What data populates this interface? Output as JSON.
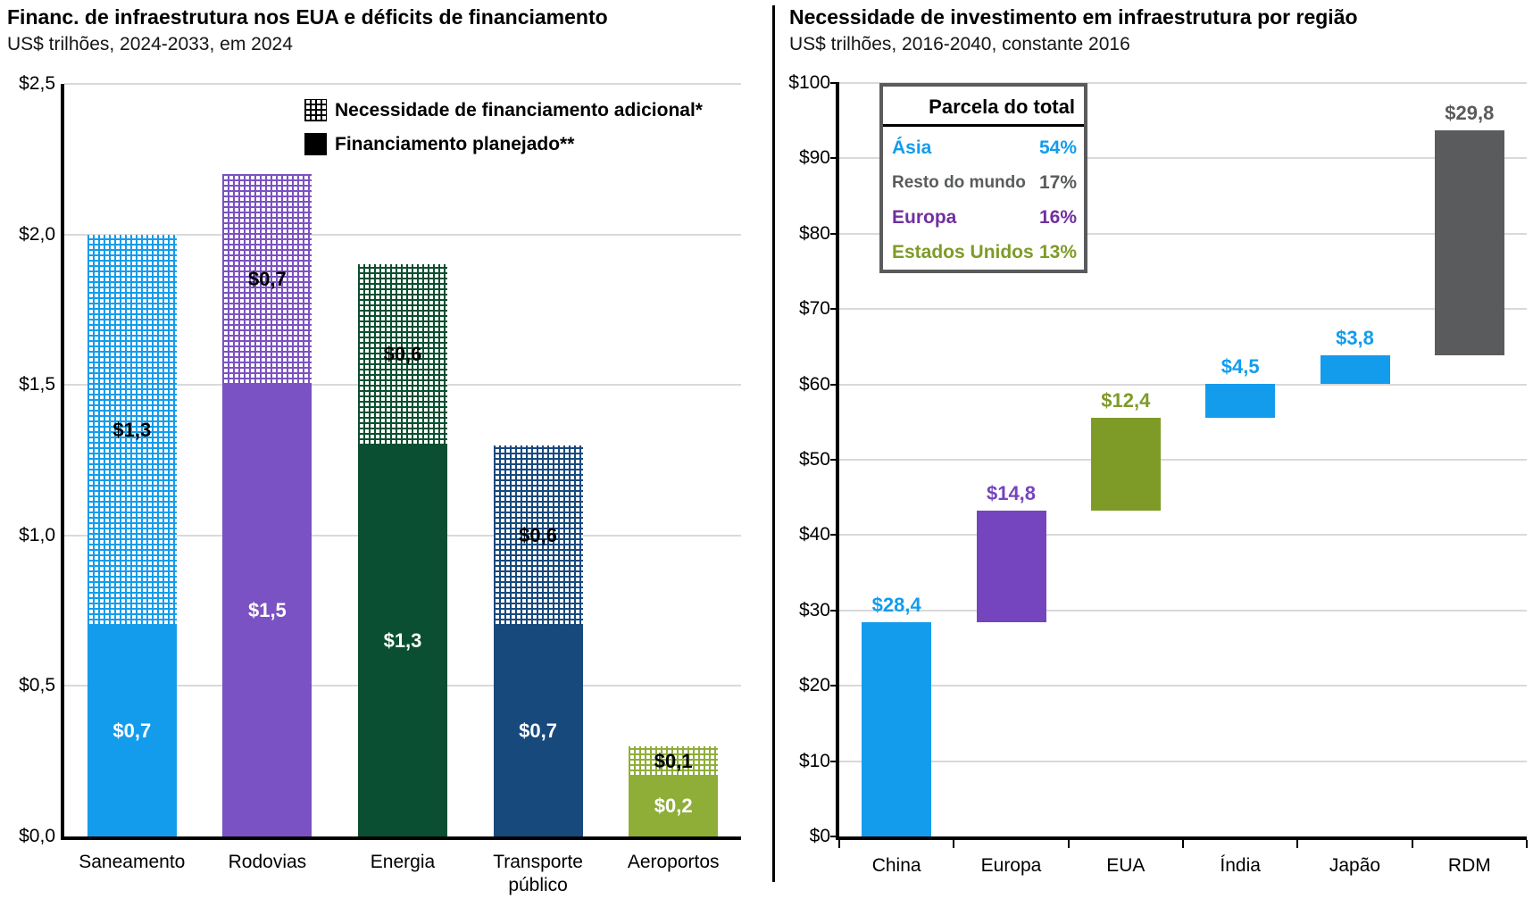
{
  "chart_data": [
    {
      "type": "bar",
      "stacked": true,
      "title": "Financ. de infraestrutura nos EUA e déficits de financiamento",
      "subtitle": "US$ trilhões, 2024-2033, em 2024",
      "categories": [
        "Saneamento",
        "Rodovias",
        "Energia",
        "Transporte público",
        "Aeroportos"
      ],
      "series": [
        {
          "name": "Financiamento planejado**",
          "style": "solid",
          "values": [
            0.7,
            1.5,
            1.3,
            0.7,
            0.2
          ],
          "data_labels": [
            "$0,7",
            "$1,5",
            "$1,3",
            "$0,7",
            "$0,2"
          ]
        },
        {
          "name": "Necessidade de financiamento adicional*",
          "style": "pattern",
          "values": [
            1.3,
            0.7,
            0.6,
            0.6,
            0.1
          ],
          "data_labels": [
            "$1,3",
            "$0,7",
            "$0,6",
            "$0,6",
            "$0,1"
          ]
        }
      ],
      "category_colors": [
        "#149CEC",
        "#7A52C3",
        "#0A4F31",
        "#17497D",
        "#8FAE38"
      ],
      "ylim": [
        0,
        2.5
      ],
      "y_ticks": [
        {
          "label": "$0,0",
          "value": 0
        },
        {
          "label": "$0,5",
          "value": 0.5
        },
        {
          "label": "$1,0",
          "value": 1.0
        },
        {
          "label": "$1,5",
          "value": 1.5
        },
        {
          "label": "$2,0",
          "value": 2.0
        },
        {
          "label": "$2,5",
          "value": 2.5
        }
      ],
      "grid": true,
      "legend_position": "top-inside"
    },
    {
      "type": "waterfall",
      "title": "Necessidade de investimento em infraestrutura por região",
      "subtitle": "US$ trilhões, 2016-2040, constante 2016",
      "categories": [
        "China",
        "Europa",
        "EUA",
        "Índia",
        "Japão",
        "RDM"
      ],
      "values": [
        28.4,
        14.8,
        12.4,
        4.5,
        3.8,
        29.8
      ],
      "data_labels": [
        "$28,4",
        "$14,8",
        "$12,4",
        "$4,5",
        "$3,8",
        "$29,8"
      ],
      "bar_colors": [
        "#149CEC",
        "#7445BE",
        "#7E9B27",
        "#149CEC",
        "#149CEC",
        "#595B5D"
      ],
      "ylim": [
        0,
        100
      ],
      "y_ticks": [
        {
          "label": "$0",
          "value": 0
        },
        {
          "label": "$10",
          "value": 10
        },
        {
          "label": "$20",
          "value": 20
        },
        {
          "label": "$30",
          "value": 30
        },
        {
          "label": "$40",
          "value": 40
        },
        {
          "label": "$50",
          "value": 50
        },
        {
          "label": "$60",
          "value": 60
        },
        {
          "label": "$70",
          "value": 70
        },
        {
          "label": "$80",
          "value": 80
        },
        {
          "label": "$90",
          "value": 90
        },
        {
          "label": "$100",
          "value": 100
        }
      ],
      "grid": true,
      "legend_table": {
        "header": "Parcela do total",
        "rows": [
          {
            "region": "Ásia",
            "share": "54%",
            "color": "#149CEC"
          },
          {
            "region": "Resto do mundo",
            "share": "17%",
            "color": "#595B5D"
          },
          {
            "region": "Europa",
            "share": "16%",
            "color": "#7030A0"
          },
          {
            "region": "Estados Unidos",
            "share": "13%",
            "color": "#7E9B27"
          }
        ]
      }
    }
  ]
}
